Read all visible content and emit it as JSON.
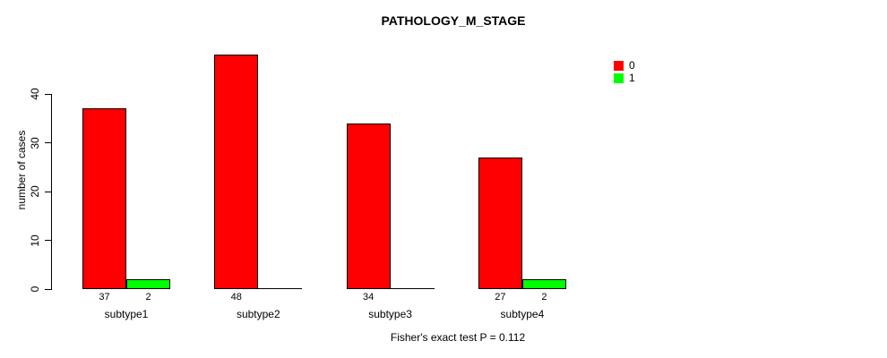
{
  "chart_data": {
    "type": "bar",
    "title": "PATHOLOGY_M_STAGE",
    "categories": [
      "subtype1",
      "subtype2",
      "subtype3",
      "subtype4"
    ],
    "series": [
      {
        "name": "0",
        "color": "#FF0000",
        "values": [
          37,
          48,
          34,
          27
        ]
      },
      {
        "name": "1",
        "color": "#00FF00",
        "values": [
          2,
          0,
          0,
          2
        ]
      }
    ],
    "xlabel": "",
    "ylabel": "number of cases",
    "ylim": [
      0,
      40
    ],
    "yticks": [
      0,
      10,
      20,
      30,
      40
    ],
    "grid": false,
    "bar_value_labels": "shown under bars, omitted when value is 0",
    "legend_position": "top-right",
    "annotation": "Fisher's exact test P = 0.112"
  }
}
